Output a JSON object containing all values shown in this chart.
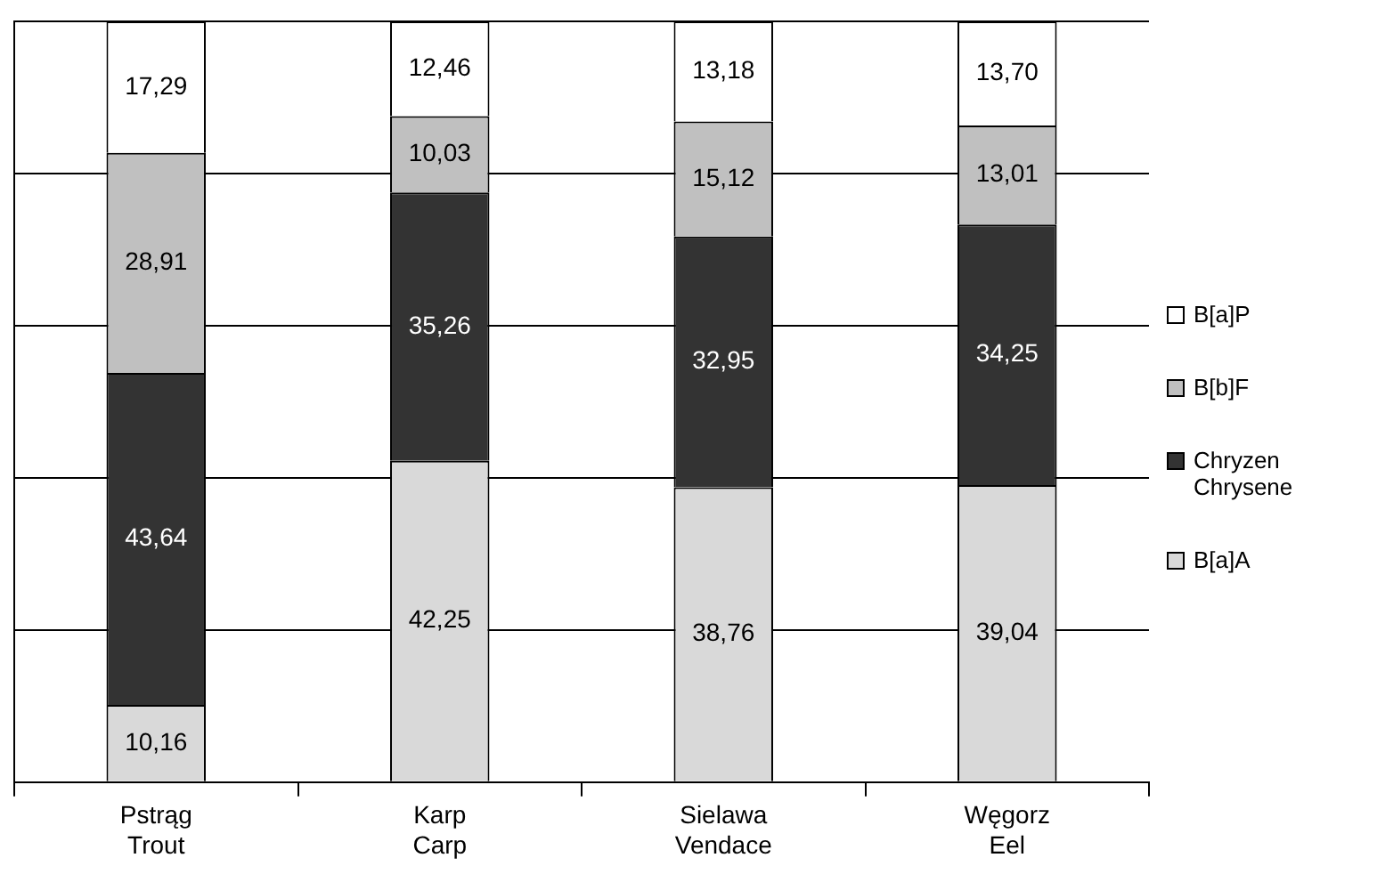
{
  "chart_data": {
    "type": "bar",
    "stacked": true,
    "categories": [
      "Pstrąg\nTrout",
      "Karp\nCarp",
      "Sielawa\nVendace",
      "Węgorz\nEel"
    ],
    "series": [
      {
        "name": "B[a]A",
        "color": "#d9d9d9",
        "values": [
          10.16,
          42.25,
          38.76,
          39.04
        ],
        "value_labels": [
          "10,16",
          "42,25",
          "38,76",
          "39,04"
        ]
      },
      {
        "name": "Chryzen\nChrysene",
        "color": "#333333",
        "values": [
          43.64,
          35.26,
          32.95,
          34.25
        ],
        "value_labels": [
          "43,64",
          "35,26",
          "32,95",
          "34,25"
        ]
      },
      {
        "name": "B[b]F",
        "color": "#c0c0c0",
        "values": [
          28.91,
          10.03,
          15.12,
          13.01
        ],
        "value_labels": [
          "28,91",
          "10,03",
          "15,12",
          "13,01"
        ]
      },
      {
        "name": "B[a]P",
        "color": "#ffffff",
        "values": [
          17.29,
          12.46,
          13.18,
          13.7
        ],
        "value_labels": [
          "17,29",
          "12,46",
          "13,18",
          "13,70"
        ]
      }
    ],
    "ylim": [
      0,
      100
    ],
    "yticks": [
      {
        "value": 0,
        "label": null
      },
      {
        "value": 20,
        "label": null
      },
      {
        "value": 40,
        "label": null
      },
      {
        "value": 60,
        "label": null
      },
      {
        "value": 80,
        "label": null
      },
      {
        "value": 100,
        "label": null
      }
    ],
    "tick_labels": "x",
    "grid": "y",
    "legend": "right"
  }
}
